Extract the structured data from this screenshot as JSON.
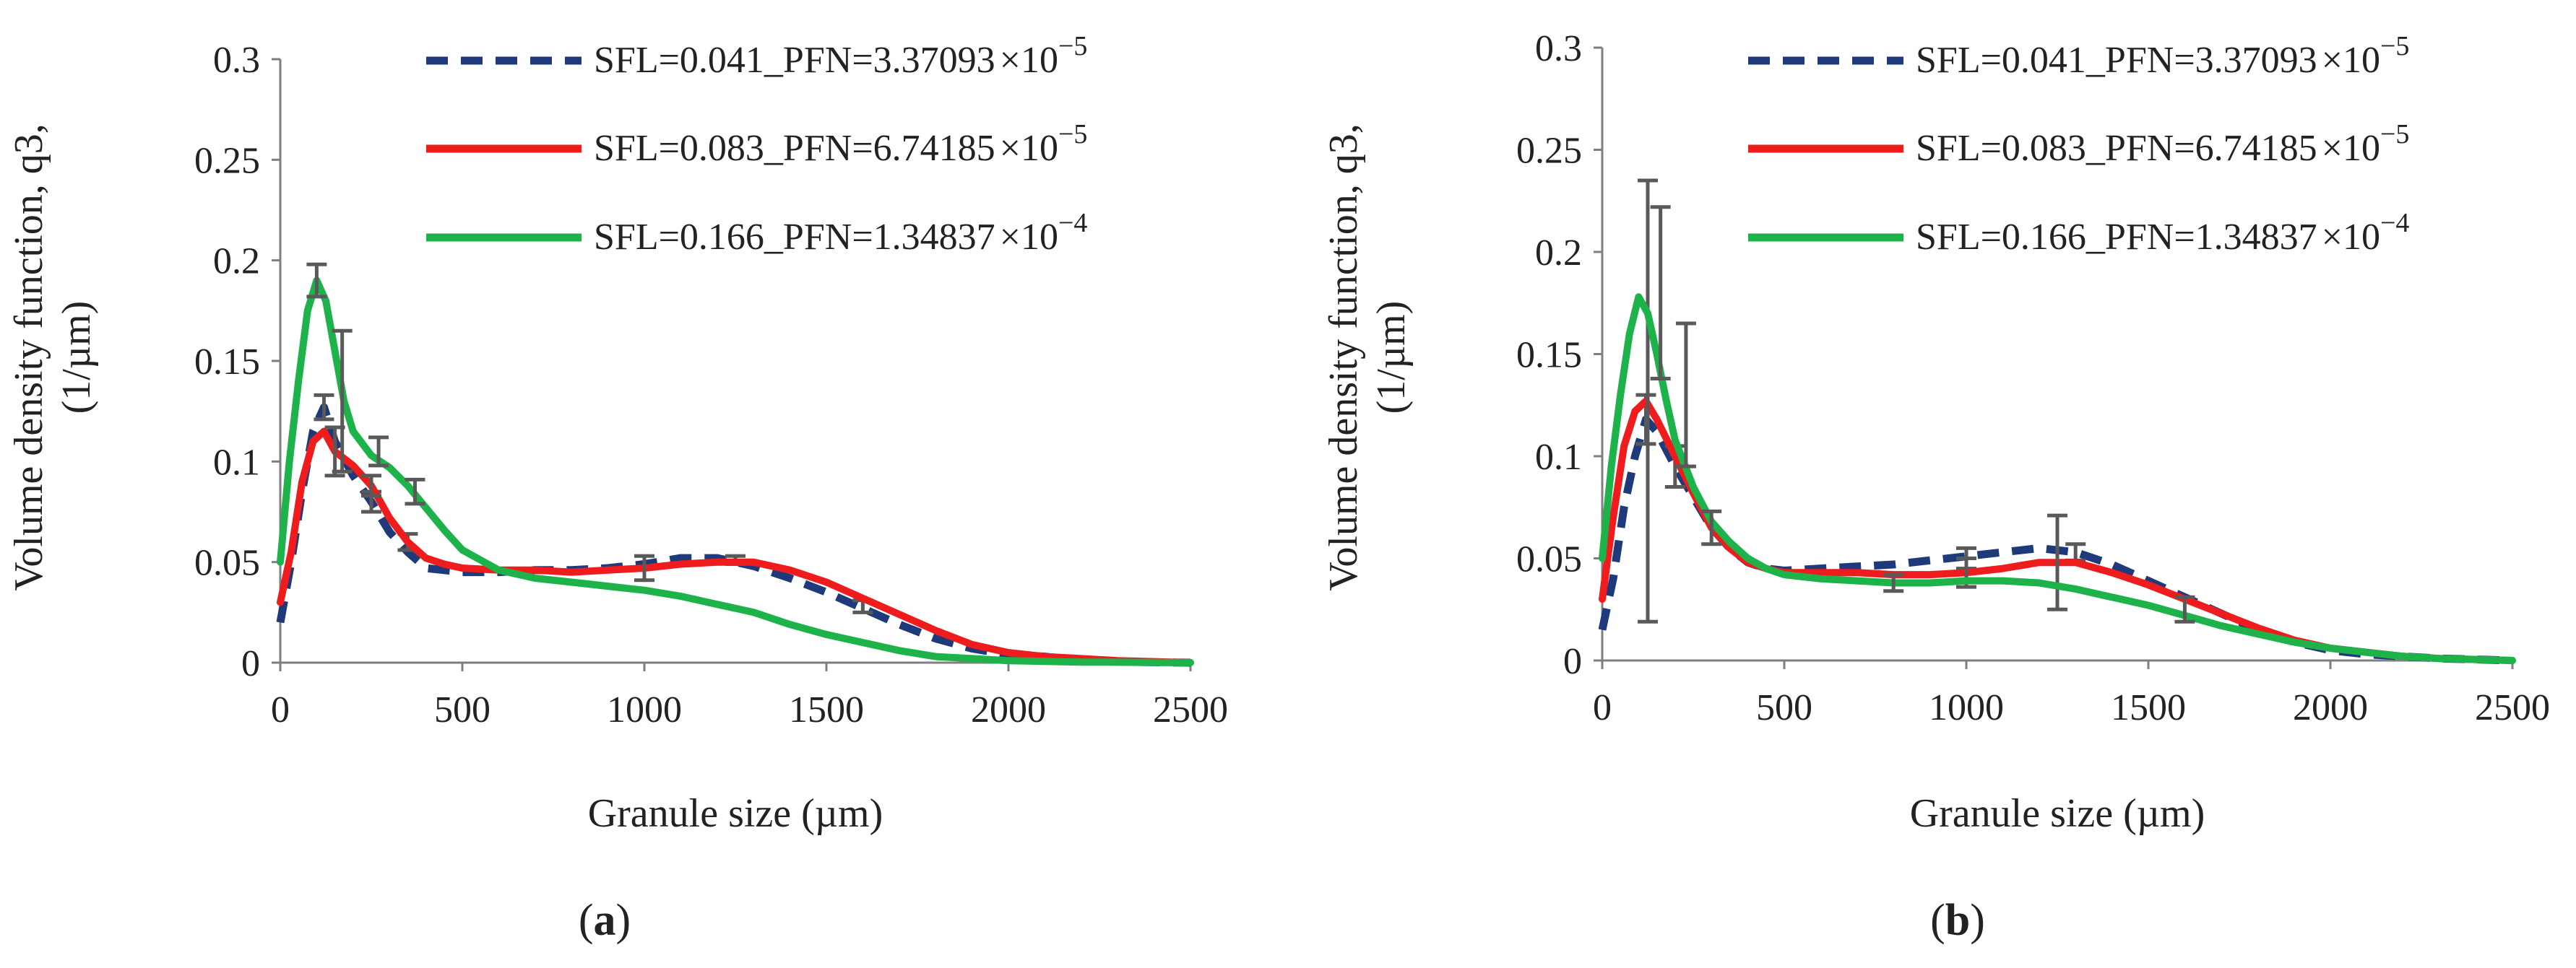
{
  "figure": {
    "background": "#ffffff",
    "axis_color": "#7f7f7f",
    "errorbar_color": "#595959"
  },
  "chart_data": [
    {
      "type": "line",
      "panel_label_open": "(",
      "panel_label_letter": "a",
      "panel_label_close": ")",
      "xlabel": "Granule size (µm)",
      "ylabel_line1": "Volume density function, q3,",
      "ylabel_line2": "(1/µm)",
      "xlim": [
        0,
        2500
      ],
      "ylim": [
        0,
        0.3
      ],
      "x_ticks": [
        0,
        500,
        1000,
        1500,
        2000,
        2500
      ],
      "y_ticks": [
        0,
        0.05,
        0.1,
        0.15,
        0.2,
        0.25,
        0.3
      ],
      "x_tick_labels": [
        "0",
        "500",
        "1000",
        "1500",
        "2000",
        "2500"
      ],
      "y_tick_labels": [
        "0",
        "0.05",
        "0.1",
        "0.15",
        "0.2",
        "0.25",
        "0.3"
      ],
      "series": [
        {
          "name": "SFL=0.041_PFN=3.37093×10−5",
          "legend_text": "SFL=0.041_PFN=3.37093",
          "legend_mult": "×10",
          "legend_exp": "−5",
          "color": "#1f3a7a",
          "dash": true,
          "x": [
            0,
            30,
            60,
            90,
            120,
            150,
            200,
            250,
            300,
            350,
            400,
            450,
            500,
            600,
            700,
            800,
            900,
            1000,
            1100,
            1200,
            1300,
            1400,
            1500,
            1600,
            1700,
            1800,
            1900,
            2000,
            2100,
            2200,
            2300,
            2400,
            2500
          ],
          "y": [
            0.02,
            0.05,
            0.085,
            0.115,
            0.127,
            0.11,
            0.093,
            0.08,
            0.065,
            0.055,
            0.047,
            0.046,
            0.045,
            0.045,
            0.046,
            0.046,
            0.047,
            0.049,
            0.052,
            0.052,
            0.048,
            0.042,
            0.035,
            0.027,
            0.019,
            0.012,
            0.007,
            0.004,
            0.003,
            0.001,
            0.0005,
            0.0002,
            0
          ],
          "errorbars": [
            {
              "x": 120,
              "y": 0.127,
              "err": 0.006
            },
            {
              "x": 250,
              "y": 0.08,
              "err": 0.005
            },
            {
              "x": 350,
              "y": 0.06,
              "err": 0.004
            },
            {
              "x": 1250,
              "y": 0.051,
              "err": 0.002
            },
            {
              "x": 1600,
              "y": 0.028,
              "err": 0.003
            }
          ]
        },
        {
          "name": "SFL=0.083_PFN=6.74185×10−5",
          "legend_text": "SFL=0.083_PFN=6.74185",
          "legend_mult": "×10",
          "legend_exp": "−5",
          "color": "#ee1c1c",
          "dash": false,
          "x": [
            0,
            30,
            60,
            90,
            120,
            150,
            200,
            250,
            300,
            350,
            400,
            450,
            500,
            600,
            700,
            800,
            900,
            1000,
            1100,
            1200,
            1300,
            1400,
            1500,
            1600,
            1700,
            1800,
            1900,
            2000,
            2100,
            2200,
            2300,
            2400,
            2500
          ],
          "y": [
            0.03,
            0.055,
            0.09,
            0.11,
            0.115,
            0.105,
            0.098,
            0.088,
            0.072,
            0.06,
            0.052,
            0.049,
            0.047,
            0.046,
            0.046,
            0.045,
            0.046,
            0.047,
            0.049,
            0.05,
            0.05,
            0.046,
            0.04,
            0.032,
            0.024,
            0.016,
            0.009,
            0.005,
            0.003,
            0.002,
            0.001,
            0.0005,
            0
          ],
          "errorbars": [
            {
              "x": 150,
              "y": 0.105,
              "err": 0.012
            },
            {
              "x": 250,
              "y": 0.088,
              "err": 0.005
            },
            {
              "x": 1000,
              "y": 0.047,
              "err": 0.006
            }
          ]
        },
        {
          "name": "SFL=0.166_PFN=1.34837×10−4",
          "legend_text": "SFL=0.166_PFN=1.34837",
          "legend_mult": "×10",
          "legend_exp": "−4",
          "color": "#1db34a",
          "dash": false,
          "x": [
            0,
            25,
            50,
            75,
            100,
            125,
            150,
            175,
            200,
            250,
            300,
            350,
            400,
            450,
            500,
            600,
            700,
            800,
            900,
            1000,
            1100,
            1200,
            1300,
            1400,
            1500,
            1600,
            1700,
            1800,
            1900,
            2000,
            2100,
            2200,
            2300,
            2400,
            2500
          ],
          "y": [
            0.05,
            0.1,
            0.14,
            0.175,
            0.19,
            0.18,
            0.155,
            0.13,
            0.115,
            0.103,
            0.097,
            0.088,
            0.077,
            0.066,
            0.056,
            0.046,
            0.042,
            0.04,
            0.038,
            0.036,
            0.033,
            0.029,
            0.025,
            0.019,
            0.014,
            0.01,
            0.006,
            0.003,
            0.002,
            0.001,
            0.0006,
            0.0003,
            0.0002,
            0.0001,
            0
          ],
          "errorbars": [
            {
              "x": 100,
              "y": 0.19,
              "err": 0.008
            },
            {
              "x": 170,
              "y": 0.13,
              "err": 0.035
            },
            {
              "x": 270,
              "y": 0.105,
              "err": 0.007
            },
            {
              "x": 370,
              "y": 0.085,
              "err": 0.006
            }
          ]
        }
      ]
    },
    {
      "type": "line",
      "panel_label_open": "(",
      "panel_label_letter": "b",
      "panel_label_close": ")",
      "xlabel": "Granule size (µm)",
      "ylabel_line1": "Volume density function, q3,",
      "ylabel_line2": "(1/µm)",
      "xlim": [
        0,
        2500
      ],
      "ylim": [
        0,
        0.3
      ],
      "x_ticks": [
        0,
        500,
        1000,
        1500,
        2000,
        2500
      ],
      "y_ticks": [
        0,
        0.05,
        0.1,
        0.15,
        0.2,
        0.25,
        0.3
      ],
      "x_tick_labels": [
        "0",
        "500",
        "1000",
        "1500",
        "2000",
        "2500"
      ],
      "y_tick_labels": [
        "0",
        "0.05",
        "0.1",
        "0.15",
        "0.2",
        "0.25",
        "0.3"
      ],
      "series": [
        {
          "name": "SFL=0.041_PFN=3.37093×10−5",
          "legend_text": "SFL=0.041_PFN=3.37093",
          "legend_mult": "×10",
          "legend_exp": "−5",
          "color": "#1f3a7a",
          "dash": true,
          "x": [
            0,
            30,
            60,
            90,
            120,
            150,
            200,
            250,
            300,
            350,
            400,
            450,
            500,
            600,
            700,
            800,
            900,
            1000,
            1100,
            1200,
            1300,
            1400,
            1500,
            1600,
            1700,
            1800,
            1900,
            2000,
            2100,
            2200,
            2300,
            2400,
            2500
          ],
          "y": [
            0.015,
            0.04,
            0.075,
            0.1,
            0.118,
            0.112,
            0.095,
            0.08,
            0.065,
            0.055,
            0.048,
            0.045,
            0.044,
            0.045,
            0.046,
            0.047,
            0.049,
            0.051,
            0.053,
            0.055,
            0.053,
            0.047,
            0.039,
            0.031,
            0.023,
            0.015,
            0.009,
            0.005,
            0.003,
            0.002,
            0.001,
            0.0005,
            0
          ],
          "errorbars": [
            {
              "x": 120,
              "y": 0.118,
              "err": 0.012
            },
            {
              "x": 200,
              "y": 0.095,
              "err": 0.01
            },
            {
              "x": 1000,
              "y": 0.05,
              "err": 0.005
            },
            {
              "x": 1300,
              "y": 0.053,
              "err": 0.004
            }
          ]
        },
        {
          "name": "SFL=0.083_PFN=6.74185×10−5",
          "legend_text": "SFL=0.083_PFN=6.74185",
          "legend_mult": "×10",
          "legend_exp": "−5",
          "color": "#ee1c1c",
          "dash": false,
          "x": [
            0,
            30,
            60,
            90,
            120,
            150,
            200,
            250,
            300,
            350,
            400,
            450,
            500,
            600,
            700,
            800,
            900,
            1000,
            1100,
            1200,
            1300,
            1400,
            1500,
            1600,
            1700,
            1800,
            1900,
            2000,
            2100,
            2200,
            2300,
            2400,
            2500
          ],
          "y": [
            0.03,
            0.07,
            0.105,
            0.122,
            0.127,
            0.118,
            0.1,
            0.082,
            0.065,
            0.055,
            0.048,
            0.045,
            0.043,
            0.043,
            0.043,
            0.042,
            0.042,
            0.043,
            0.045,
            0.048,
            0.048,
            0.043,
            0.037,
            0.03,
            0.023,
            0.016,
            0.01,
            0.006,
            0.004,
            0.002,
            0.001,
            0.0005,
            0
          ],
          "errorbars": [
            {
              "x": 125,
              "y": 0.127,
              "err": 0.108
            },
            {
              "x": 1000,
              "y": 0.043,
              "err": 0.007
            },
            {
              "x": 1250,
              "y": 0.048,
              "err": 0.023
            }
          ]
        },
        {
          "name": "SFL=0.166_PFN=1.34837×10−4",
          "legend_text": "SFL=0.166_PFN=1.34837",
          "legend_mult": "×10",
          "legend_exp": "−4",
          "color": "#1db34a",
          "dash": false,
          "x": [
            0,
            25,
            50,
            75,
            100,
            125,
            150,
            175,
            200,
            250,
            300,
            350,
            400,
            450,
            500,
            600,
            700,
            800,
            900,
            1000,
            1100,
            1200,
            1300,
            1400,
            1500,
            1600,
            1700,
            1800,
            1900,
            2000,
            2100,
            2200,
            2300,
            2400,
            2500
          ],
          "y": [
            0.05,
            0.095,
            0.13,
            0.16,
            0.178,
            0.17,
            0.15,
            0.128,
            0.108,
            0.085,
            0.068,
            0.058,
            0.05,
            0.045,
            0.042,
            0.04,
            0.039,
            0.038,
            0.038,
            0.039,
            0.039,
            0.038,
            0.035,
            0.031,
            0.027,
            0.022,
            0.017,
            0.013,
            0.009,
            0.006,
            0.004,
            0.002,
            0.001,
            0.0005,
            0
          ],
          "errorbars": [
            {
              "x": 160,
              "y": 0.18,
              "err": 0.042
            },
            {
              "x": 230,
              "y": 0.13,
              "err": 0.035
            },
            {
              "x": 300,
              "y": 0.065,
              "err": 0.008
            },
            {
              "x": 800,
              "y": 0.038,
              "err": 0.004
            },
            {
              "x": 1600,
              "y": 0.025,
              "err": 0.006
            }
          ]
        }
      ]
    }
  ]
}
